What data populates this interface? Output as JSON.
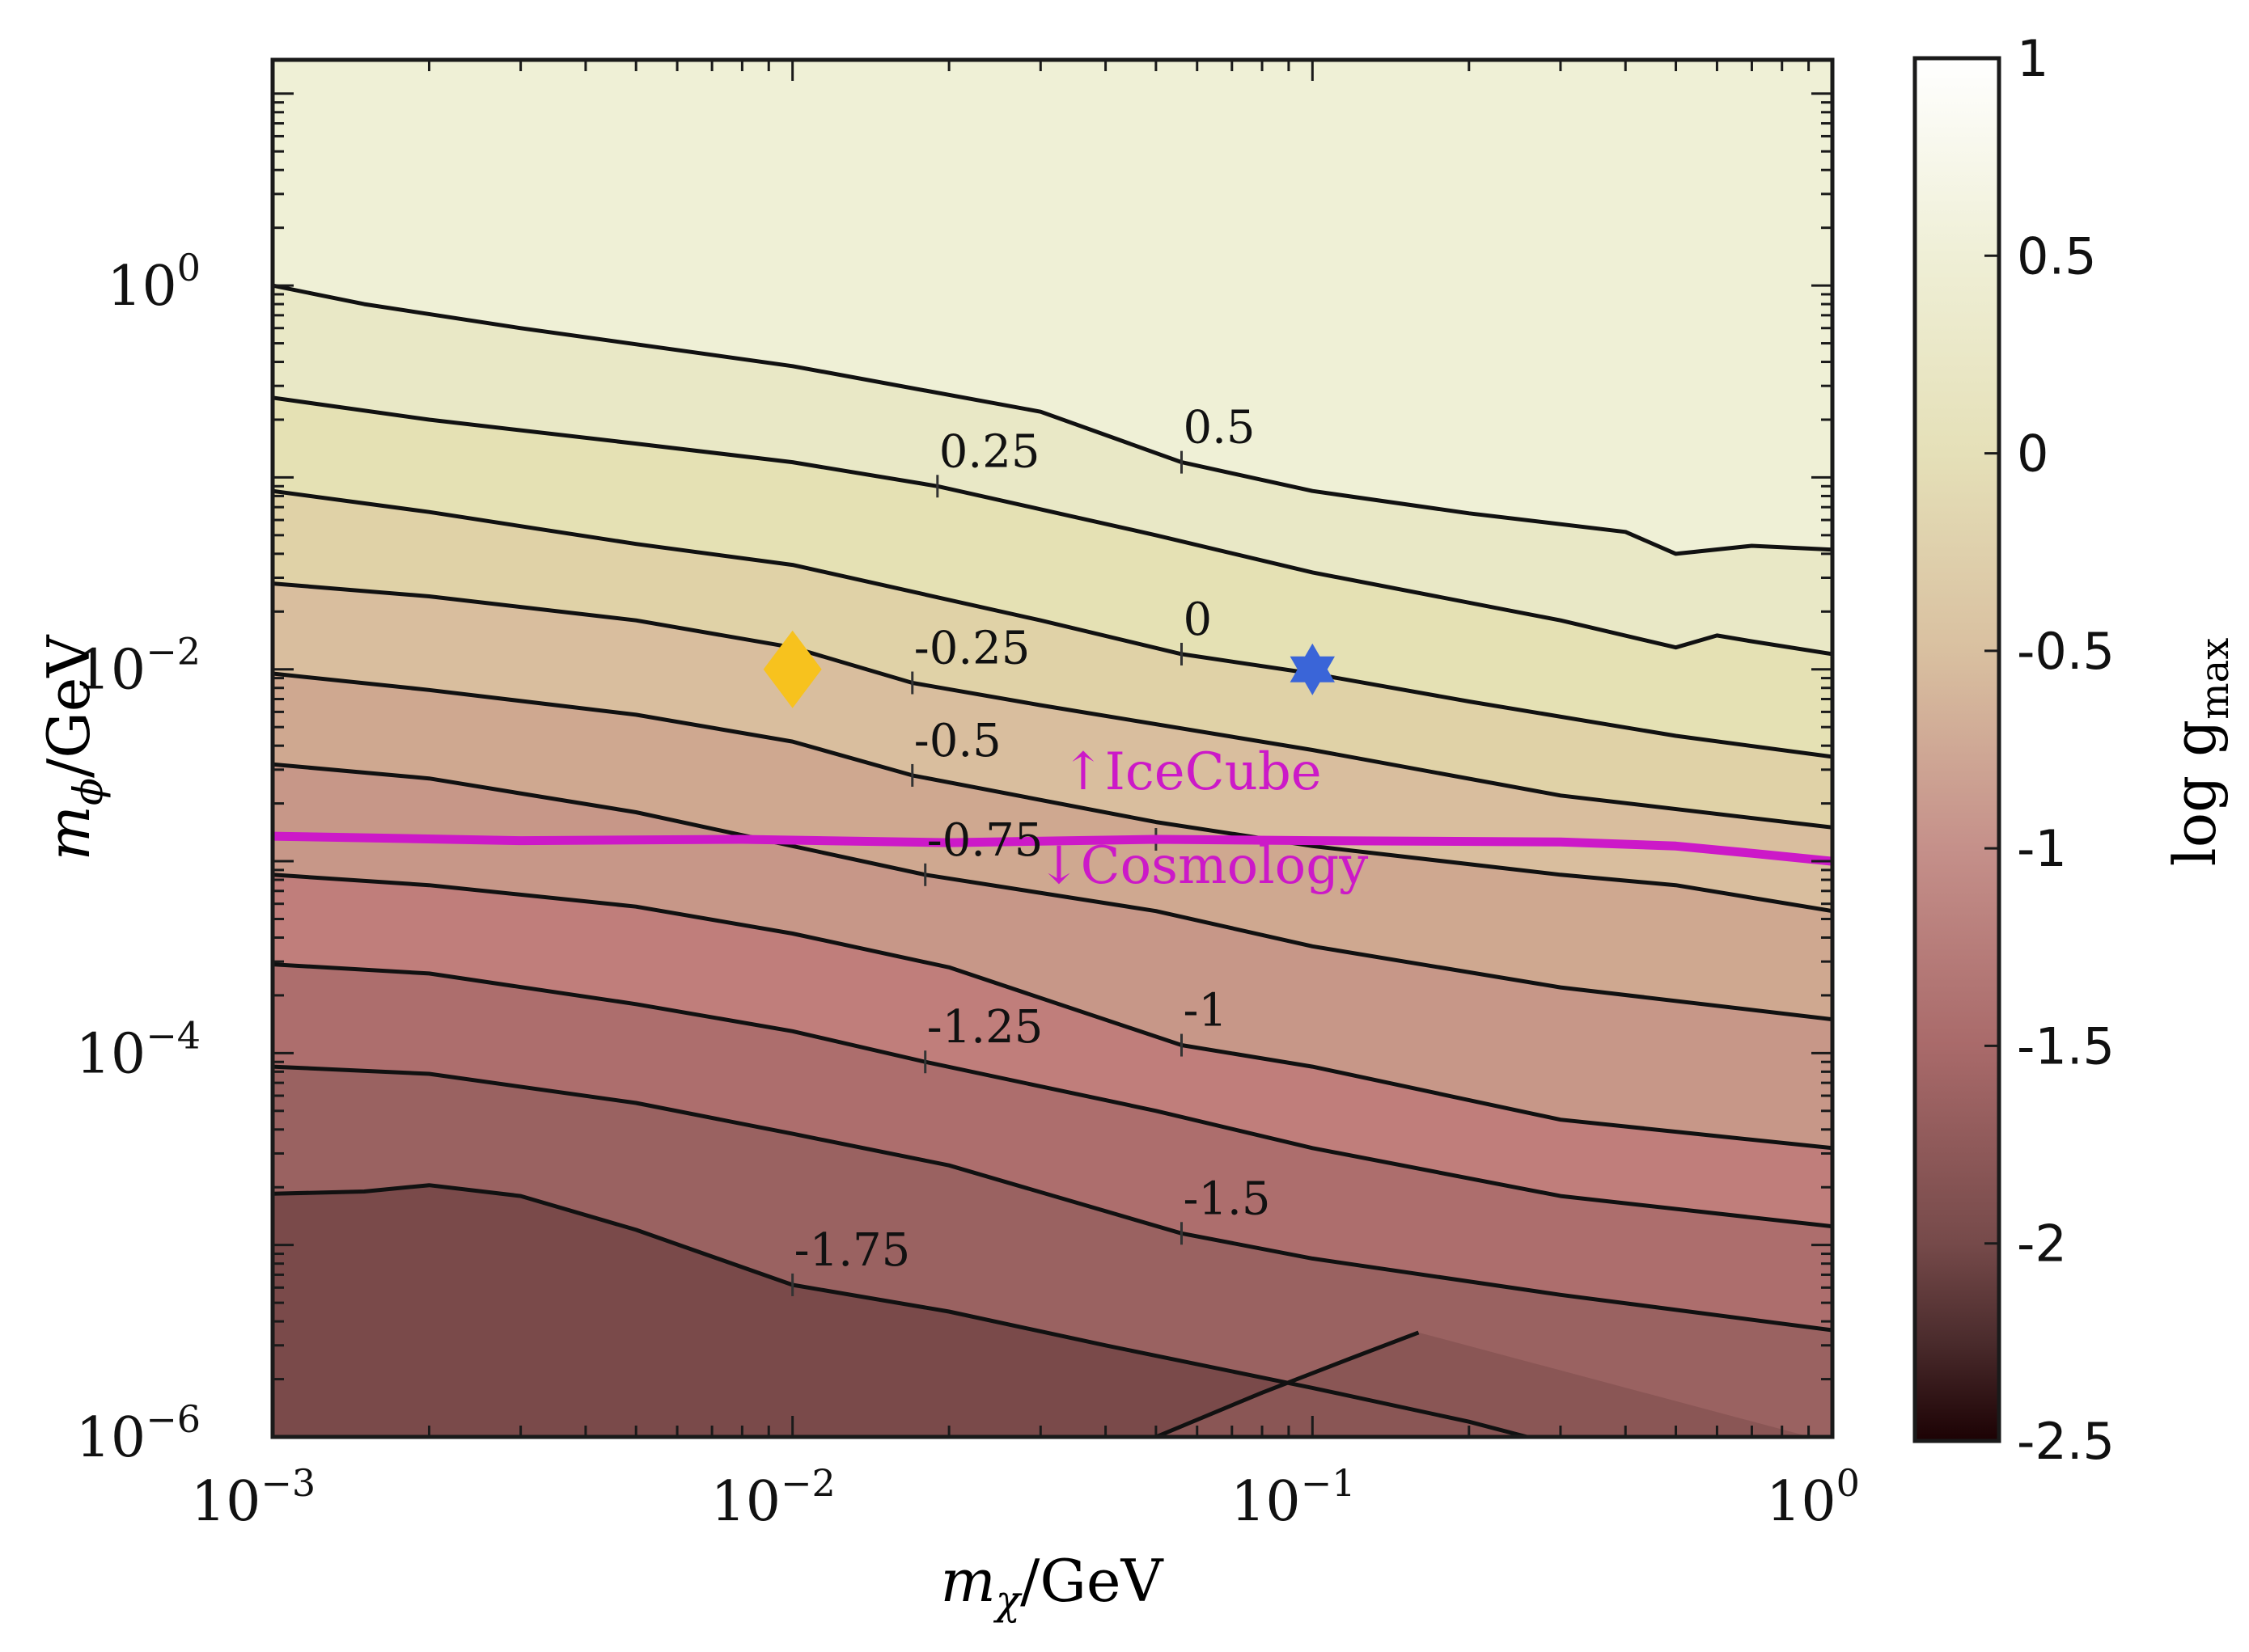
{
  "chart_data": {
    "type": "contour",
    "x_axis": {
      "label_main": "m",
      "label_sub": "χ",
      "label_tail": "/GeV",
      "scale": "log",
      "range": [
        0.001,
        1
      ],
      "ticks": [
        {
          "value": 0.001,
          "base": "10",
          "exp": "−3"
        },
        {
          "value": 0.01,
          "base": "10",
          "exp": "−2"
        },
        {
          "value": 0.1,
          "base": "10",
          "exp": "−1"
        },
        {
          "value": 1,
          "base": "10",
          "exp": "0"
        }
      ]
    },
    "y_axis": {
      "label_main": "m",
      "label_sub": "ϕ",
      "label_tail": "/GeV",
      "scale": "log",
      "range": [
        1e-06,
        15
      ],
      "ticks": [
        {
          "value": 1e-06,
          "base": "10",
          "exp": "−6"
        },
        {
          "value": 0.0001,
          "base": "10",
          "exp": "−4"
        },
        {
          "value": 0.01,
          "base": "10",
          "exp": "−2"
        },
        {
          "value": 1,
          "base": "10",
          "exp": "0"
        }
      ]
    },
    "colorbar": {
      "label_main": "log g",
      "label_sub": "max",
      "range": [
        -2.5,
        1
      ],
      "tick_labels": [
        {
          "value": 1,
          "text": "1"
        },
        {
          "value": 0.5,
          "text": "0.5"
        },
        {
          "value": 0,
          "text": "0"
        },
        {
          "value": -0.5,
          "text": "-0.5"
        },
        {
          "value": -1,
          "text": "-1"
        },
        {
          "value": -1.5,
          "text": "-1.5"
        },
        {
          "value": -2,
          "text": "-2"
        },
        {
          "value": -2.5,
          "text": "-2.5"
        }
      ],
      "color_stops": [
        {
          "value": -2.5,
          "color": "#1c0204"
        },
        {
          "value": -2.25,
          "color": "#4a2b2c"
        },
        {
          "value": -2.0,
          "color": "#764a4a"
        },
        {
          "value": -1.5,
          "color": "#a96a6a"
        },
        {
          "value": -1.0,
          "color": "#c5908a"
        },
        {
          "value": -0.5,
          "color": "#d9c0a0"
        },
        {
          "value": 0.0,
          "color": "#e5e0b8"
        },
        {
          "value": 0.5,
          "color": "#efefd6"
        },
        {
          "value": 1.0,
          "color": "#ffffff"
        }
      ]
    },
    "contours": [
      {
        "level": 0.5,
        "label": "0.5",
        "label_at": [
          0.056,
          0.12
        ],
        "points": [
          [
            0.001,
            1.0
          ],
          [
            0.0015,
            0.8
          ],
          [
            0.003,
            0.6
          ],
          [
            0.01,
            0.38
          ],
          [
            0.03,
            0.22
          ],
          [
            0.056,
            0.12
          ],
          [
            0.1,
            0.085
          ],
          [
            0.2,
            0.065
          ],
          [
            0.4,
            0.052
          ],
          [
            0.5,
            0.04
          ],
          [
            0.7,
            0.044
          ],
          [
            1.0,
            0.042
          ]
        ]
      },
      {
        "level": 0.25,
        "label": "0.25",
        "label_at": [
          0.019,
          0.09
        ],
        "points": [
          [
            0.001,
            0.26
          ],
          [
            0.002,
            0.2
          ],
          [
            0.005,
            0.15
          ],
          [
            0.01,
            0.12
          ],
          [
            0.019,
            0.09
          ],
          [
            0.05,
            0.05
          ],
          [
            0.1,
            0.032
          ],
          [
            0.3,
            0.018
          ],
          [
            0.5,
            0.013
          ],
          [
            0.6,
            0.015
          ],
          [
            0.7,
            0.014
          ],
          [
            1.0,
            0.012
          ]
        ]
      },
      {
        "level": 0.0,
        "label": "0",
        "label_at": [
          0.056,
          0.012
        ],
        "points": [
          [
            0.001,
            0.085
          ],
          [
            0.002,
            0.066
          ],
          [
            0.005,
            0.045
          ],
          [
            0.01,
            0.035
          ],
          [
            0.03,
            0.018
          ],
          [
            0.056,
            0.012
          ],
          [
            0.1,
            0.0095
          ],
          [
            0.2,
            0.0068
          ],
          [
            0.5,
            0.0045
          ],
          [
            1.0,
            0.0035
          ]
        ]
      },
      {
        "level": -0.25,
        "label": "-0.25",
        "label_at": [
          0.017,
          0.0085
        ],
        "points": [
          [
            0.001,
            0.028
          ],
          [
            0.002,
            0.024
          ],
          [
            0.005,
            0.018
          ],
          [
            0.01,
            0.013
          ],
          [
            0.017,
            0.0085
          ],
          [
            0.03,
            0.0065
          ],
          [
            0.1,
            0.0038
          ],
          [
            0.3,
            0.0022
          ],
          [
            1.0,
            0.0015
          ]
        ]
      },
      {
        "level": -0.5,
        "label": "-0.5",
        "label_at": [
          0.017,
          0.0028
        ],
        "points": [
          [
            0.001,
            0.0095
          ],
          [
            0.002,
            0.0078
          ],
          [
            0.005,
            0.0058
          ],
          [
            0.01,
            0.0042
          ],
          [
            0.017,
            0.0028
          ],
          [
            0.05,
            0.0016
          ],
          [
            0.1,
            0.0012
          ],
          [
            0.3,
            0.00085
          ],
          [
            0.5,
            0.00075
          ],
          [
            1.0,
            0.00055
          ]
        ]
      },
      {
        "level": -0.75,
        "label": "-0.75",
        "label_at": [
          0.018,
          0.00085
        ],
        "points": [
          [
            0.001,
            0.0032
          ],
          [
            0.002,
            0.0027
          ],
          [
            0.005,
            0.0018
          ],
          [
            0.01,
            0.0012
          ],
          [
            0.018,
            0.00085
          ],
          [
            0.05,
            0.00055
          ],
          [
            0.1,
            0.00036
          ],
          [
            0.3,
            0.00022
          ],
          [
            1.0,
            0.00015
          ]
        ]
      },
      {
        "level": -1.0,
        "label": "-1",
        "label_at": [
          0.056,
          0.00011
        ],
        "points": [
          [
            0.001,
            0.00085
          ],
          [
            0.002,
            0.00075
          ],
          [
            0.005,
            0.00058
          ],
          [
            0.01,
            0.00042
          ],
          [
            0.02,
            0.00028
          ],
          [
            0.056,
            0.00011
          ],
          [
            0.1,
            8.5e-05
          ],
          [
            0.3,
            4.5e-05
          ],
          [
            1.0,
            3.2e-05
          ]
        ]
      },
      {
        "level": -1.25,
        "label": "-1.25",
        "label_at": [
          0.018,
          9e-05
        ],
        "points": [
          [
            0.001,
            0.00029
          ],
          [
            0.002,
            0.00026
          ],
          [
            0.005,
            0.00018
          ],
          [
            0.01,
            0.00013
          ],
          [
            0.018,
            9e-05
          ],
          [
            0.05,
            5e-05
          ],
          [
            0.1,
            3.2e-05
          ],
          [
            0.3,
            1.8e-05
          ],
          [
            1.0,
            1.25e-05
          ]
        ]
      },
      {
        "level": -1.5,
        "label": "-1.5",
        "label_at": [
          0.056,
          1.15e-05
        ],
        "points": [
          [
            0.001,
            8.5e-05
          ],
          [
            0.002,
            7.8e-05
          ],
          [
            0.005,
            5.5e-05
          ],
          [
            0.01,
            3.8e-05
          ],
          [
            0.02,
            2.6e-05
          ],
          [
            0.056,
            1.15e-05
          ],
          [
            0.1,
            8.5e-06
          ],
          [
            0.3,
            5.5e-06
          ],
          [
            1.0,
            3.6e-06
          ]
        ]
      },
      {
        "level": -1.75,
        "label": "-1.75",
        "label_at": [
          0.01,
          6.2e-06
        ],
        "points": [
          [
            0.001,
            1.85e-05
          ],
          [
            0.0015,
            1.9e-05
          ],
          [
            0.002,
            2.05e-05
          ],
          [
            0.003,
            1.8e-05
          ],
          [
            0.005,
            1.2e-05
          ],
          [
            0.01,
            6.2e-06
          ],
          [
            0.02,
            4.5e-06
          ],
          [
            0.04,
            3e-06
          ],
          [
            0.1,
            1.8e-06
          ],
          [
            0.2,
            1.2e-06
          ],
          [
            0.3,
            9e-07
          ],
          [
            1.0,
            5.5e-07
          ]
        ]
      },
      {
        "level": -2.0,
        "label": "",
        "label_at": null,
        "points": [
          [
            0.05,
            1e-06
          ],
          [
            0.08,
            1.7e-06
          ],
          [
            0.12,
            2.6e-06
          ],
          [
            0.16,
            3.5e-06
          ]
        ]
      }
    ],
    "icecube_line": {
      "color": "#cc19c8",
      "label_up": "↑IceCube",
      "label_down": "↓Cosmology",
      "points": [
        [
          0.001,
          0.00135
        ],
        [
          0.003,
          0.00128
        ],
        [
          0.008,
          0.0013
        ],
        [
          0.02,
          0.00125
        ],
        [
          0.05,
          0.0013
        ],
        [
          0.1,
          0.00128
        ],
        [
          0.3,
          0.00126
        ],
        [
          0.5,
          0.0012
        ],
        [
          0.7,
          0.0011
        ],
        [
          1.0,
          0.001
        ]
      ]
    },
    "markers": [
      {
        "name": "diamond",
        "shape": "diamond",
        "color": "#f7c21e",
        "x": 0.01,
        "y": 0.01
      },
      {
        "name": "star",
        "shape": "hexagram",
        "color": "#3a65d8",
        "x": 0.1,
        "y": 0.01
      }
    ],
    "band_fills": [
      {
        "level": 0.625,
        "color": "#eff0d6"
      },
      {
        "level": 0.375,
        "color": "#e9e8c6"
      },
      {
        "level": 0.125,
        "color": "#e5e1b4"
      },
      {
        "level": -0.125,
        "color": "#e0d2a7"
      },
      {
        "level": -0.375,
        "color": "#d9be9e"
      },
      {
        "level": -0.625,
        "color": "#cfa890"
      },
      {
        "level": -0.875,
        "color": "#c79788"
      },
      {
        "level": -1.125,
        "color": "#c07e7b"
      },
      {
        "level": -1.375,
        "color": "#ad6e6d"
      },
      {
        "level": -1.625,
        "color": "#9a6261"
      },
      {
        "level": -1.875,
        "color": "#8a5655"
      },
      {
        "level": -2.125,
        "color": "#7a4a4a"
      }
    ]
  }
}
